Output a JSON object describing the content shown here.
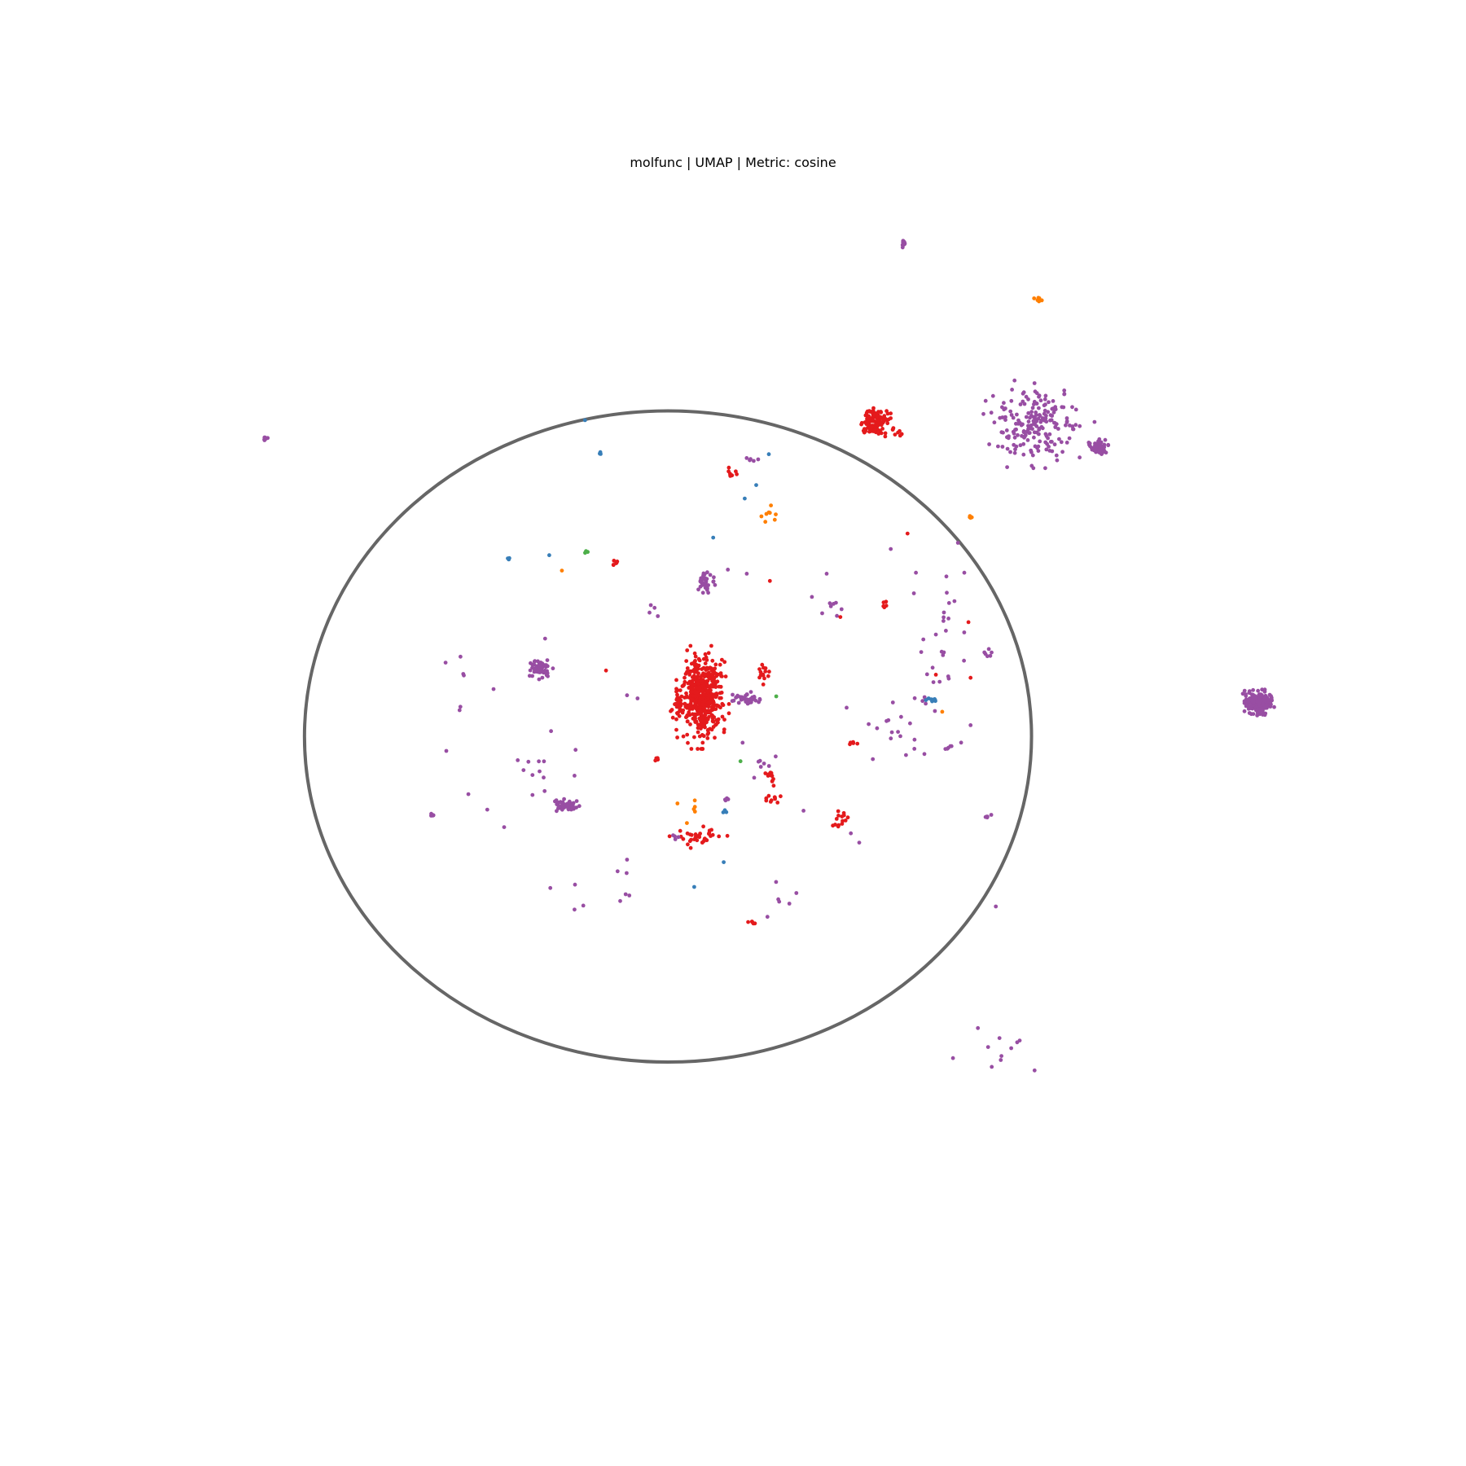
{
  "chart_data": {
    "type": "scatter",
    "title": "molfunc | UMAP | Metric: cosine",
    "xlabel": "",
    "ylabel": "",
    "axes_visible": false,
    "grid": false,
    "legend": "none",
    "xlim": [
      0,
      100
    ],
    "ylim": [
      0,
      100
    ],
    "colors": {
      "red": "#e41a1c",
      "purple": "#984ea3",
      "blue": "#377eb8",
      "orange": "#ff7f00",
      "green": "#4daf4a",
      "ellipse": "#666666"
    },
    "boundary_ellipse": {
      "cx": 41.1,
      "cy": 50.3,
      "rx": 34.6,
      "ry": 31.6
    },
    "clusters": [
      {
        "color": "red",
        "cx": 44.4,
        "cy": 46.5,
        "sx": 1.0,
        "sy": 2.0,
        "n": 480
      },
      {
        "color": "red",
        "cx": 42.3,
        "cy": 47.4,
        "sx": 0.4,
        "sy": 0.6,
        "n": 25
      },
      {
        "color": "red",
        "cx": 44.0,
        "cy": 60.0,
        "sx": 1.1,
        "sy": 0.45,
        "n": 35
      },
      {
        "color": "red",
        "cx": 60.8,
        "cy": 19.8,
        "sx": 0.7,
        "sy": 0.55,
        "n": 110
      },
      {
        "color": "red",
        "cx": 62.6,
        "cy": 20.6,
        "sx": 1.0,
        "sy": 0.3,
        "n": 8
      },
      {
        "color": "red",
        "cx": 51.0,
        "cy": 56.4,
        "sx": 0.35,
        "sy": 0.25,
        "n": 10
      },
      {
        "color": "red",
        "cx": 50.8,
        "cy": 54.3,
        "sx": 0.3,
        "sy": 0.5,
        "n": 12
      },
      {
        "color": "red",
        "cx": 50.3,
        "cy": 44.3,
        "sx": 0.3,
        "sy": 0.6,
        "n": 14
      },
      {
        "color": "red",
        "cx": 57.7,
        "cy": 58.1,
        "sx": 0.3,
        "sy": 0.3,
        "n": 10
      },
      {
        "color": "red",
        "cx": 47.2,
        "cy": 24.7,
        "sx": 0.2,
        "sy": 0.2,
        "n": 8
      },
      {
        "color": "red",
        "cx": 36.1,
        "cy": 33.5,
        "sx": 0.15,
        "sy": 0.15,
        "n": 6
      },
      {
        "color": "red",
        "cx": 40.1,
        "cy": 52.5,
        "sx": 0.15,
        "sy": 0.15,
        "n": 5
      },
      {
        "color": "red",
        "cx": 49.0,
        "cy": 68.4,
        "sx": 0.15,
        "sy": 0.15,
        "n": 5
      },
      {
        "color": "red",
        "cx": 58.8,
        "cy": 51.0,
        "sx": 0.2,
        "sy": 0.2,
        "n": 5
      },
      {
        "color": "red",
        "cx": 61.8,
        "cy": 37.6,
        "sx": 0.1,
        "sy": 0.3,
        "n": 5
      },
      {
        "color": "red",
        "cx": 57.1,
        "cy": 59.0,
        "sx": 0.15,
        "sy": 0.15,
        "n": 4
      },
      {
        "color": "purple",
        "cx": 76.2,
        "cy": 20.0,
        "sx": 2.2,
        "sy": 1.7,
        "n": 200
      },
      {
        "color": "purple",
        "cx": 82.0,
        "cy": 22.2,
        "sx": 0.4,
        "sy": 0.3,
        "n": 60
      },
      {
        "color": "purple",
        "cx": 97.3,
        "cy": 47.0,
        "sx": 0.6,
        "sy": 0.5,
        "n": 220
      },
      {
        "color": "purple",
        "cx": 28.9,
        "cy": 43.7,
        "sx": 0.5,
        "sy": 0.45,
        "n": 60
      },
      {
        "color": "purple",
        "cx": 31.5,
        "cy": 57.0,
        "sx": 0.6,
        "sy": 0.25,
        "n": 50
      },
      {
        "color": "purple",
        "cx": 44.6,
        "cy": 35.1,
        "sx": 0.5,
        "sy": 0.5,
        "n": 35
      },
      {
        "color": "purple",
        "cx": 48.6,
        "cy": 46.6,
        "sx": 0.7,
        "sy": 0.25,
        "n": 40
      },
      {
        "color": "purple",
        "cx": 63.5,
        "cy": 2.5,
        "sx": 0.1,
        "sy": 0.2,
        "n": 12
      },
      {
        "color": "purple",
        "cx": 2.8,
        "cy": 21.4,
        "sx": 0.1,
        "sy": 0.1,
        "n": 10
      },
      {
        "color": "purple",
        "cx": 66.8,
        "cy": 43.4,
        "sx": 1.0,
        "sy": 1.2,
        "n": 12
      },
      {
        "color": "purple",
        "cx": 67.5,
        "cy": 38.2,
        "sx": 1.2,
        "sy": 1.5,
        "n": 10
      },
      {
        "color": "purple",
        "cx": 63.9,
        "cy": 50.5,
        "sx": 1.0,
        "sy": 1.0,
        "n": 10
      },
      {
        "color": "purple",
        "cx": 57.3,
        "cy": 38.0,
        "sx": 1.0,
        "sy": 0.5,
        "n": 8
      },
      {
        "color": "purple",
        "cx": 65.3,
        "cy": 47.1,
        "sx": 0.5,
        "sy": 0.5,
        "n": 6
      },
      {
        "color": "purple",
        "cx": 68.0,
        "cy": 51.3,
        "sx": 0.4,
        "sy": 0.5,
        "n": 6
      },
      {
        "color": "purple",
        "cx": 40.0,
        "cy": 38.3,
        "sx": 0.5,
        "sy": 0.3,
        "n": 4
      },
      {
        "color": "purple",
        "cx": 29.0,
        "cy": 53.0,
        "sx": 1.5,
        "sy": 1.5,
        "n": 10
      },
      {
        "color": "purple",
        "cx": 36.0,
        "cy": 66.0,
        "sx": 1.5,
        "sy": 1.5,
        "n": 8
      },
      {
        "color": "purple",
        "cx": 52.5,
        "cy": 66.0,
        "sx": 1.0,
        "sy": 1.0,
        "n": 6
      },
      {
        "color": "purple",
        "cx": 71.7,
        "cy": 42.3,
        "sx": 0.2,
        "sy": 0.2,
        "n": 6
      },
      {
        "color": "purple",
        "cx": 50.1,
        "cy": 52.0,
        "sx": 0.5,
        "sy": 0.6,
        "n": 6
      },
      {
        "color": "purple",
        "cx": 49.0,
        "cy": 23.3,
        "sx": 0.3,
        "sy": 0.1,
        "n": 5
      },
      {
        "color": "purple",
        "cx": 71.5,
        "cy": 58.1,
        "sx": 0.3,
        "sy": 0.1,
        "n": 5
      },
      {
        "color": "purple",
        "cx": 18.6,
        "cy": 57.9,
        "sx": 0.1,
        "sy": 0.1,
        "n": 5
      },
      {
        "color": "purple",
        "cx": 41.6,
        "cy": 60.0,
        "sx": 0.3,
        "sy": 0.2,
        "n": 4
      },
      {
        "color": "purple",
        "cx": 46.5,
        "cy": 56.4,
        "sx": 0.2,
        "sy": 0.1,
        "n": 4
      },
      {
        "color": "purple",
        "cx": 72.5,
        "cy": 80.5,
        "sx": 2.0,
        "sy": 1.8,
        "n": 11
      },
      {
        "color": "purple",
        "cx": 21.0,
        "cy": 46.0,
        "sx": 1.5,
        "sy": 2.0,
        "n": 6
      },
      {
        "color": "blue",
        "cx": 66.4,
        "cy": 46.7,
        "sx": 0.3,
        "sy": 0.1,
        "n": 10
      },
      {
        "color": "blue",
        "cx": 34.6,
        "cy": 22.7,
        "sx": 0.1,
        "sy": 0.2,
        "n": 4
      },
      {
        "color": "blue",
        "cx": 46.4,
        "cy": 57.6,
        "sx": 0.1,
        "sy": 0.1,
        "n": 3
      },
      {
        "color": "blue",
        "cx": 26.0,
        "cy": 33.0,
        "sx": 0.1,
        "sy": 0.1,
        "n": 3
      },
      {
        "color": "orange",
        "cx": 76.4,
        "cy": 7.9,
        "sx": 0.2,
        "sy": 0.1,
        "n": 8
      },
      {
        "color": "orange",
        "cx": 51.0,
        "cy": 28.9,
        "sx": 0.5,
        "sy": 0.5,
        "n": 8
      },
      {
        "color": "orange",
        "cx": 69.8,
        "cy": 29.0,
        "sx": 0.15,
        "sy": 0.1,
        "n": 4
      },
      {
        "color": "orange",
        "cx": 43.6,
        "cy": 57.2,
        "sx": 0.1,
        "sy": 0.4,
        "n": 4
      },
      {
        "color": "green",
        "cx": 33.3,
        "cy": 32.4,
        "sx": 0.1,
        "sy": 0.05,
        "n": 3
      }
    ],
    "points": [
      {
        "x": 33.2,
        "y": 19.6,
        "color": "blue"
      },
      {
        "x": 45.4,
        "y": 31.0,
        "color": "blue"
      },
      {
        "x": 29.8,
        "y": 32.7,
        "color": "blue"
      },
      {
        "x": 48.4,
        "y": 27.2,
        "color": "blue"
      },
      {
        "x": 50.7,
        "y": 22.9,
        "color": "blue"
      },
      {
        "x": 49.5,
        "y": 25.9,
        "color": "blue"
      },
      {
        "x": 46.4,
        "y": 62.5,
        "color": "blue"
      },
      {
        "x": 43.6,
        "y": 64.9,
        "color": "blue"
      },
      {
        "x": 31.0,
        "y": 34.2,
        "color": "orange"
      },
      {
        "x": 42.0,
        "y": 56.8,
        "color": "orange"
      },
      {
        "x": 42.9,
        "y": 58.7,
        "color": "orange"
      },
      {
        "x": 67.2,
        "y": 47.9,
        "color": "orange"
      },
      {
        "x": 48.0,
        "y": 52.7,
        "color": "green"
      },
      {
        "x": 51.4,
        "y": 46.4,
        "color": "green"
      },
      {
        "x": 35.2,
        "y": 43.9,
        "color": "red"
      },
      {
        "x": 63.9,
        "y": 30.6,
        "color": "red"
      },
      {
        "x": 57.5,
        "y": 38.7,
        "color": "red"
      },
      {
        "x": 66.6,
        "y": 44.3,
        "color": "red"
      },
      {
        "x": 69.7,
        "y": 39.2,
        "color": "red"
      },
      {
        "x": 69.9,
        "y": 44.6,
        "color": "red"
      },
      {
        "x": 50.8,
        "y": 35.2,
        "color": "red"
      },
      {
        "x": 29.4,
        "y": 40.8,
        "color": "purple"
      },
      {
        "x": 24.5,
        "y": 45.7,
        "color": "purple"
      },
      {
        "x": 26.8,
        "y": 52.6,
        "color": "purple"
      },
      {
        "x": 25.5,
        "y": 59.1,
        "color": "purple"
      },
      {
        "x": 23.9,
        "y": 57.4,
        "color": "purple"
      },
      {
        "x": 22.1,
        "y": 55.9,
        "color": "purple"
      },
      {
        "x": 29.9,
        "y": 65.0,
        "color": "purple"
      },
      {
        "x": 32.2,
        "y": 67.1,
        "color": "purple"
      },
      {
        "x": 49.3,
        "y": 54.3,
        "color": "purple"
      },
      {
        "x": 48.6,
        "y": 34.5,
        "color": "purple"
      },
      {
        "x": 46.8,
        "y": 34.1,
        "color": "purple"
      },
      {
        "x": 56.2,
        "y": 34.5,
        "color": "purple"
      },
      {
        "x": 58.1,
        "y": 47.5,
        "color": "purple"
      },
      {
        "x": 60.2,
        "y": 49.1,
        "color": "purple"
      },
      {
        "x": 60.6,
        "y": 52.5,
        "color": "purple"
      },
      {
        "x": 65.5,
        "y": 52.0,
        "color": "purple"
      },
      {
        "x": 64.7,
        "y": 34.4,
        "color": "purple"
      },
      {
        "x": 69.3,
        "y": 34.4,
        "color": "purple"
      },
      {
        "x": 68.7,
        "y": 31.5,
        "color": "purple"
      },
      {
        "x": 62.3,
        "y": 32.1,
        "color": "purple"
      },
      {
        "x": 66.6,
        "y": 40.4,
        "color": "purple"
      },
      {
        "x": 64.5,
        "y": 36.4,
        "color": "purple"
      },
      {
        "x": 58.5,
        "y": 59.7,
        "color": "purple"
      },
      {
        "x": 59.3,
        "y": 60.6,
        "color": "purple"
      },
      {
        "x": 69.9,
        "y": 49.2,
        "color": "purple"
      },
      {
        "x": 72.3,
        "y": 66.8,
        "color": "purple"
      },
      {
        "x": 48.2,
        "y": 50.9,
        "color": "purple"
      },
      {
        "x": 38.2,
        "y": 46.6,
        "color": "purple"
      },
      {
        "x": 37.2,
        "y": 46.3,
        "color": "purple"
      },
      {
        "x": 62.5,
        "y": 47.0,
        "color": "purple"
      },
      {
        "x": 61.0,
        "y": 49.5,
        "color": "purple"
      },
      {
        "x": 61.9,
        "y": 48.8,
        "color": "purple"
      },
      {
        "x": 54.0,
        "y": 57.5,
        "color": "purple"
      },
      {
        "x": 76.0,
        "y": 20.0,
        "color": "purple"
      },
      {
        "x": 32.3,
        "y": 51.6,
        "color": "purple"
      },
      {
        "x": 32.2,
        "y": 54.1,
        "color": "purple"
      },
      {
        "x": 20.0,
        "y": 51.7,
        "color": "purple"
      }
    ]
  }
}
